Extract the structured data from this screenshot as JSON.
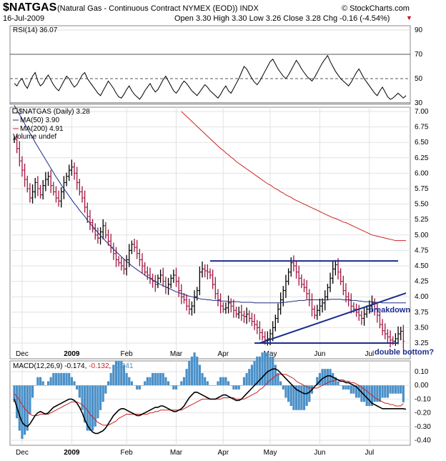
{
  "header": {
    "symbol": "$NATGAS",
    "description": "(Natural Gas - Continuous Contract NYMEX (EOD)) INDX",
    "date": "16-Jul-2009",
    "ohlc": "Open 3.30  High 3.30  Low 3.26  Close 3.28  Chg -0.16 (-4.54%)",
    "copyright": "© StockCharts.com",
    "chg_arrow": "▼"
  },
  "colors": {
    "price_up": "#000000",
    "price_down": "#a0153e",
    "ma50": "#1a2a80",
    "ma200": "#cc2222",
    "trendline": "#1a2c8c",
    "macd_hist": "#4a90c8",
    "macd_line": "#000000",
    "macd_signal": "#cc2222",
    "rsi_line": "#000000"
  },
  "chart_data": [
    {
      "type": "line",
      "panel": "rsi",
      "legend": "RSI(14) 36.07",
      "ylim": [
        30,
        90
      ],
      "yticks": [
        30,
        50,
        70,
        90
      ],
      "reference_lines": [
        30,
        50,
        70
      ],
      "x_sample": "days 0-150 (Dec 2008 - Jul 2009)",
      "series": [
        {
          "values": [
            46,
            44,
            48,
            50,
            45,
            42,
            47,
            52,
            55,
            48,
            44,
            46,
            50,
            53,
            49,
            45,
            42,
            40,
            44,
            48,
            52,
            50,
            46,
            43,
            45,
            49,
            53,
            55,
            50,
            47,
            44,
            41,
            38,
            36,
            40,
            44,
            48,
            45,
            42,
            38,
            35,
            34,
            37,
            41,
            44,
            40,
            37,
            35,
            33,
            36,
            40,
            43,
            46,
            42,
            39,
            41,
            45,
            49,
            52,
            48,
            44,
            40,
            38,
            41,
            45,
            48,
            46,
            43,
            40,
            38,
            36,
            39,
            42,
            45,
            43,
            40,
            38,
            36,
            34,
            37,
            41,
            44,
            40,
            38,
            42,
            46,
            50,
            55,
            60,
            58,
            54,
            50,
            47,
            45,
            48,
            52,
            56,
            60,
            64,
            66,
            62,
            58,
            55,
            52,
            50,
            53,
            57,
            61,
            65,
            62,
            58,
            55,
            52,
            50,
            48,
            51,
            55,
            59,
            63,
            66,
            69,
            64,
            60,
            56,
            53,
            50,
            48,
            46,
            44,
            47,
            51,
            55,
            58,
            54,
            50,
            47,
            44,
            41,
            38,
            36,
            40,
            43,
            39,
            35,
            33,
            34,
            36,
            38,
            36,
            34,
            36
          ]
        }
      ]
    },
    {
      "type": "line",
      "panel": "price",
      "legend_price": "$NATGAS (Daily) 3.28",
      "legend_ma50": "MA(50) 3.90",
      "legend_ma200": "MA(200) 4.91",
      "legend_volume": "Volume undef",
      "ylim": [
        3.25,
        7.0
      ],
      "yticks": [
        "3.25",
        "3.50",
        "3.75",
        "4.00",
        "4.25",
        "4.50",
        "4.75",
        "5.00",
        "5.25",
        "5.50",
        "5.75",
        "6.00",
        "6.25",
        "6.50",
        "6.75",
        "7.00"
      ],
      "xticks": [
        "Dec",
        "2009",
        "Feb",
        "Mar",
        "Apr",
        "May",
        "Jun",
        "Jul"
      ],
      "x_tick_days": [
        3,
        22,
        43,
        62,
        80,
        98,
        117,
        136
      ],
      "price_closes": [
        6.55,
        6.4,
        6.2,
        6.05,
        5.9,
        5.75,
        5.6,
        5.7,
        5.85,
        5.75,
        5.65,
        5.8,
        5.9,
        5.95,
        5.8,
        5.7,
        5.6,
        5.55,
        5.7,
        5.85,
        5.95,
        6.05,
        6.1,
        6.0,
        5.85,
        5.7,
        5.6,
        5.45,
        5.3,
        5.2,
        5.1,
        5.0,
        4.95,
        5.05,
        5.15,
        5.0,
        4.9,
        4.8,
        4.7,
        4.6,
        4.55,
        4.5,
        4.45,
        4.6,
        4.75,
        4.85,
        4.8,
        4.7,
        4.6,
        4.5,
        4.4,
        4.35,
        4.3,
        4.25,
        4.2,
        4.3,
        4.35,
        4.25,
        4.15,
        4.2,
        4.3,
        4.35,
        4.25,
        4.1,
        4.0,
        3.95,
        3.85,
        3.8,
        3.85,
        4.0,
        4.1,
        4.4,
        4.45,
        4.42,
        4.4,
        4.35,
        4.2,
        4.05,
        3.95,
        3.85,
        3.8,
        3.82,
        3.9,
        3.85,
        3.78,
        3.72,
        3.75,
        3.7,
        3.68,
        3.72,
        3.65,
        3.6,
        3.55,
        3.5,
        3.42,
        3.35,
        3.3,
        3.32,
        3.4,
        3.5,
        3.65,
        3.8,
        3.95,
        4.1,
        4.25,
        4.4,
        4.55,
        4.5,
        4.4,
        4.3,
        4.2,
        4.15,
        4.05,
        3.95,
        3.8,
        3.7,
        3.78,
        3.85,
        3.9,
        4.0,
        4.15,
        4.3,
        4.45,
        4.52,
        4.4,
        4.25,
        4.1,
        4.0,
        3.95,
        3.85,
        3.8,
        3.75,
        3.7,
        3.65,
        3.72,
        3.8,
        3.85,
        3.9,
        3.8,
        3.7,
        3.55,
        3.45,
        3.4,
        3.35,
        3.3,
        3.28,
        3.32,
        3.4,
        3.44,
        3.28
      ],
      "ma50": [
        7.1,
        7.02,
        6.95,
        6.88,
        6.8,
        6.72,
        6.65,
        6.58,
        6.5,
        6.43,
        6.36,
        6.29,
        6.22,
        6.15,
        6.08,
        6.01,
        5.94,
        5.88,
        5.81,
        5.75,
        5.69,
        5.63,
        5.57,
        5.51,
        5.46,
        5.4,
        5.35,
        5.3,
        5.24,
        5.19,
        5.14,
        5.09,
        5.04,
        4.99,
        4.95,
        4.9,
        4.86,
        4.81,
        4.77,
        4.73,
        4.69,
        4.65,
        4.61,
        4.57,
        4.54,
        4.5,
        4.47,
        4.44,
        4.41,
        4.38,
        4.35,
        4.32,
        4.3,
        4.27,
        4.25,
        4.22,
        4.2,
        4.18,
        4.16,
        4.14,
        4.12,
        4.1,
        4.08,
        4.07,
        4.05,
        4.04,
        4.02,
        4.01,
        4.0,
        3.99,
        3.98,
        3.97,
        3.96,
        3.96,
        3.95,
        3.95,
        3.94,
        3.94,
        3.94,
        3.93,
        3.93,
        3.93,
        3.92,
        3.92,
        3.92,
        3.92,
        3.92,
        3.91,
        3.91,
        3.91,
        3.91,
        3.91,
        3.9,
        3.9,
        3.9,
        3.9,
        3.9,
        3.9,
        3.9,
        3.9,
        3.9,
        3.9,
        3.9,
        3.91,
        3.91,
        3.92,
        3.92,
        3.93,
        3.93,
        3.94,
        3.94,
        3.94,
        3.95,
        3.95,
        3.95,
        3.95,
        3.95,
        3.95,
        3.95,
        3.95,
        3.95,
        3.96,
        3.96,
        3.96,
        3.96,
        3.96,
        3.95,
        3.95,
        3.95,
        3.94,
        3.94,
        3.94,
        3.93,
        3.93,
        3.92,
        3.92,
        3.92,
        3.92,
        3.91,
        3.91,
        3.91,
        3.9,
        3.9,
        3.9,
        3.9,
        3.9,
        3.9,
        3.9,
        3.9,
        3.9,
        3.9
      ],
      "ma200_start_day": 64,
      "ma200": [
        7.0,
        6.96,
        6.92,
        6.88,
        6.84,
        6.8,
        6.76,
        6.72,
        6.68,
        6.64,
        6.6,
        6.56,
        6.52,
        6.48,
        6.44,
        6.4,
        6.37,
        6.33,
        6.3,
        6.26,
        6.23,
        6.19,
        6.16,
        6.13,
        6.1,
        6.07,
        6.04,
        6.01,
        5.98,
        5.95,
        5.92,
        5.89,
        5.86,
        5.83,
        5.81,
        5.78,
        5.75,
        5.73,
        5.7,
        5.68,
        5.65,
        5.63,
        5.61,
        5.58,
        5.56,
        5.54,
        5.52,
        5.5,
        5.48,
        5.46,
        5.44,
        5.42,
        5.4,
        5.38,
        5.36,
        5.34,
        5.32,
        5.3,
        5.28,
        5.27,
        5.25,
        5.23,
        5.21,
        5.2,
        5.18,
        5.16,
        5.14,
        5.12,
        5.1,
        5.08,
        5.06,
        5.04,
        5.02,
        5.0,
        4.99,
        4.98,
        4.97,
        4.96,
        4.95,
        4.94,
        4.93,
        4.92,
        4.91,
        4.91,
        4.91,
        4.91,
        4.91
      ],
      "annotations": {
        "resistance": {
          "day_start": 75,
          "day_end": 147,
          "value": 4.58
        },
        "support": {
          "day_start": 92,
          "day_end": 147,
          "value": 3.25
        },
        "rising_trendline": {
          "day_start": 94,
          "value_start": 3.25,
          "day_end": 150,
          "value_end": 4.06
        },
        "breakdown_label": "breakdown",
        "double_bottom_label": "double bottom?"
      }
    },
    {
      "type": "line",
      "panel": "macd",
      "legend_prefix": "MACD(12,26,9)",
      "legend_macd": "-0.174",
      "legend_signal": "-0.132",
      "legend_hist": "-0.041",
      "ylim": [
        -0.4,
        0.1
      ],
      "yticks": [
        "0.10",
        "0.00",
        "-0.10",
        "-0.20",
        "-0.30",
        "-0.40"
      ],
      "xticks": [
        "Dec",
        "2009",
        "Feb",
        "Mar",
        "Apr",
        "May",
        "Jun",
        "Jul"
      ],
      "macd": [
        -0.1,
        -0.16,
        -0.22,
        -0.27,
        -0.29,
        -0.3,
        -0.28,
        -0.25,
        -0.22,
        -0.2,
        -0.19,
        -0.2,
        -0.21,
        -0.2,
        -0.18,
        -0.16,
        -0.15,
        -0.14,
        -0.13,
        -0.12,
        -0.11,
        -0.1,
        -0.1,
        -0.11,
        -0.13,
        -0.16,
        -0.2,
        -0.25,
        -0.29,
        -0.32,
        -0.34,
        -0.35,
        -0.35,
        -0.34,
        -0.33,
        -0.31,
        -0.28,
        -0.25,
        -0.22,
        -0.2,
        -0.18,
        -0.17,
        -0.17,
        -0.18,
        -0.19,
        -0.2,
        -0.21,
        -0.22,
        -0.22,
        -0.21,
        -0.2,
        -0.19,
        -0.18,
        -0.17,
        -0.16,
        -0.16,
        -0.15,
        -0.15,
        -0.16,
        -0.17,
        -0.18,
        -0.19,
        -0.19,
        -0.18,
        -0.17,
        -0.15,
        -0.12,
        -0.09,
        -0.07,
        -0.05,
        -0.05,
        -0.06,
        -0.07,
        -0.08,
        -0.09,
        -0.1,
        -0.1,
        -0.1,
        -0.09,
        -0.08,
        -0.07,
        -0.07,
        -0.08,
        -0.09,
        -0.1,
        -0.11,
        -0.11,
        -0.1,
        -0.08,
        -0.06,
        -0.04,
        -0.02,
        0.0,
        0.02,
        0.04,
        0.06,
        0.08,
        0.1,
        0.11,
        0.12,
        0.12,
        0.11,
        0.09,
        0.07,
        0.05,
        0.03,
        0.01,
        -0.01,
        -0.03,
        -0.04,
        -0.05,
        -0.06,
        -0.06,
        -0.05,
        -0.03,
        -0.01,
        0.01,
        0.03,
        0.05,
        0.06,
        0.07,
        0.07,
        0.06,
        0.05,
        0.04,
        0.03,
        0.03,
        0.02,
        0.02,
        0.01,
        0.0,
        -0.01,
        -0.03,
        -0.05,
        -0.07,
        -0.09,
        -0.11,
        -0.13,
        -0.14,
        -0.15,
        -0.16,
        -0.17,
        -0.17,
        -0.17,
        -0.17,
        -0.17,
        -0.17,
        -0.17,
        -0.17,
        -0.17,
        -0.174
      ],
      "signal": [
        -0.06,
        -0.08,
        -0.11,
        -0.14,
        -0.17,
        -0.19,
        -0.21,
        -0.22,
        -0.22,
        -0.22,
        -0.21,
        -0.21,
        -0.21,
        -0.21,
        -0.2,
        -0.19,
        -0.18,
        -0.17,
        -0.16,
        -0.15,
        -0.14,
        -0.13,
        -0.12,
        -0.12,
        -0.12,
        -0.13,
        -0.14,
        -0.16,
        -0.18,
        -0.21,
        -0.23,
        -0.25,
        -0.27,
        -0.28,
        -0.29,
        -0.29,
        -0.29,
        -0.28,
        -0.27,
        -0.26,
        -0.24,
        -0.23,
        -0.22,
        -0.21,
        -0.21,
        -0.21,
        -0.21,
        -0.21,
        -0.21,
        -0.21,
        -0.21,
        -0.21,
        -0.2,
        -0.2,
        -0.19,
        -0.19,
        -0.18,
        -0.18,
        -0.18,
        -0.18,
        -0.18,
        -0.18,
        -0.18,
        -0.18,
        -0.18,
        -0.17,
        -0.16,
        -0.15,
        -0.14,
        -0.13,
        -0.12,
        -0.11,
        -0.1,
        -0.1,
        -0.1,
        -0.1,
        -0.1,
        -0.1,
        -0.1,
        -0.1,
        -0.09,
        -0.09,
        -0.09,
        -0.09,
        -0.09,
        -0.1,
        -0.1,
        -0.1,
        -0.1,
        -0.09,
        -0.08,
        -0.07,
        -0.06,
        -0.05,
        -0.03,
        -0.02,
        0.0,
        0.02,
        0.04,
        0.05,
        0.07,
        0.08,
        0.08,
        0.08,
        0.08,
        0.07,
        0.06,
        0.05,
        0.03,
        0.02,
        0.01,
        0.0,
        -0.01,
        -0.02,
        -0.02,
        -0.02,
        -0.02,
        -0.01,
        0.0,
        0.01,
        0.02,
        0.03,
        0.03,
        0.04,
        0.04,
        0.04,
        0.04,
        0.03,
        0.03,
        0.02,
        0.02,
        0.01,
        0.0,
        -0.01,
        -0.03,
        -0.04,
        -0.06,
        -0.07,
        -0.09,
        -0.1,
        -0.11,
        -0.12,
        -0.13,
        -0.13,
        -0.14,
        -0.14,
        -0.15,
        -0.15,
        -0.15,
        -0.132
      ],
      "hist": [
        -0.04,
        -0.08,
        -0.11,
        -0.13,
        -0.12,
        -0.11,
        -0.07,
        -0.03,
        0.0,
        0.02,
        0.02,
        0.01,
        0.0,
        0.01,
        0.02,
        0.03,
        0.03,
        0.03,
        0.03,
        0.03,
        0.03,
        0.03,
        0.02,
        0.01,
        -0.01,
        -0.03,
        -0.06,
        -0.09,
        -0.11,
        -0.11,
        -0.11,
        -0.1,
        -0.08,
        -0.06,
        -0.04,
        -0.02,
        0.01,
        0.03,
        0.05,
        0.06,
        0.06,
        0.06,
        0.05,
        0.03,
        0.02,
        0.01,
        0.0,
        -0.01,
        -0.01,
        0.0,
        0.01,
        0.02,
        0.02,
        0.03,
        0.03,
        0.03,
        0.03,
        0.03,
        0.02,
        0.01,
        0.0,
        -0.01,
        -0.01,
        0.0,
        0.01,
        0.02,
        0.04,
        0.06,
        0.07,
        0.08,
        0.07,
        0.05,
        0.03,
        0.02,
        0.01,
        0.0,
        0.0,
        0.0,
        0.01,
        0.02,
        0.02,
        0.02,
        0.01,
        0.0,
        -0.01,
        -0.01,
        -0.01,
        0.0,
        0.02,
        0.03,
        0.04,
        0.05,
        0.06,
        0.07,
        0.07,
        0.08,
        0.08,
        0.08,
        0.07,
        0.07,
        0.05,
        0.03,
        0.01,
        -0.01,
        -0.03,
        -0.04,
        -0.05,
        -0.06,
        -0.06,
        -0.06,
        -0.06,
        -0.06,
        -0.05,
        -0.04,
        -0.02,
        0.0,
        0.02,
        0.03,
        0.04,
        0.04,
        0.04,
        0.04,
        0.03,
        0.02,
        0.01,
        0.0,
        -0.01,
        -0.01,
        -0.01,
        -0.02,
        -0.02,
        -0.03,
        -0.03,
        -0.04,
        -0.04,
        -0.05,
        -0.05,
        -0.05,
        -0.04,
        -0.04,
        -0.04,
        -0.03,
        -0.03,
        -0.03,
        -0.02,
        -0.02,
        -0.02,
        -0.02,
        -0.02,
        -0.041
      ]
    }
  ]
}
